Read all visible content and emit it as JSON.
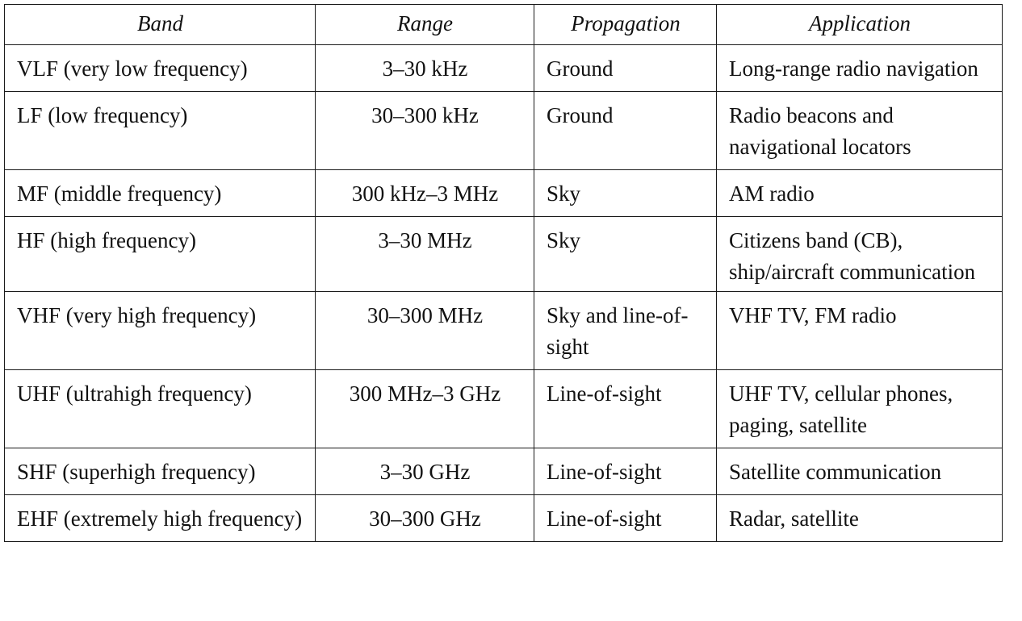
{
  "table": {
    "headers": [
      "Band",
      "Range",
      "Propagation",
      "Application"
    ],
    "rows": [
      {
        "band": "VLF (very low frequency)",
        "range": "3–30 kHz",
        "propagation": "Ground",
        "application": "Long-range radio navigation"
      },
      {
        "band": "LF (low frequency)",
        "range": "30–300 kHz",
        "propagation": "Ground",
        "application": "Radio beacons and navigational locators"
      },
      {
        "band": "MF (middle frequency)",
        "range": "300 kHz–3 MHz",
        "propagation": "Sky",
        "application": "AM radio"
      },
      {
        "band": "HF (high frequency)",
        "range": "3–30 MHz",
        "propagation": "Sky",
        "application": "Citizens band (CB), ship/aircraft communication"
      },
      {
        "band": "VHF (very high frequency)",
        "range": "30–300 MHz",
        "propagation": "Sky and line-of-sight",
        "application": "VHF TV, FM radio"
      },
      {
        "band": "UHF (ultrahigh frequency)",
        "range": "300 MHz–3 GHz",
        "propagation": "Line-of-sight",
        "application": "UHF TV, cellular phones, paging, satellite"
      },
      {
        "band": "SHF (superhigh frequency)",
        "range": "3–30 GHz",
        "propagation": "Line-of-sight",
        "application": "Satellite communication"
      },
      {
        "band": "EHF (extremely high frequency)",
        "range": "30–300 GHz",
        "propagation": "Line-of-sight",
        "application": "Radar, satellite"
      }
    ]
  }
}
